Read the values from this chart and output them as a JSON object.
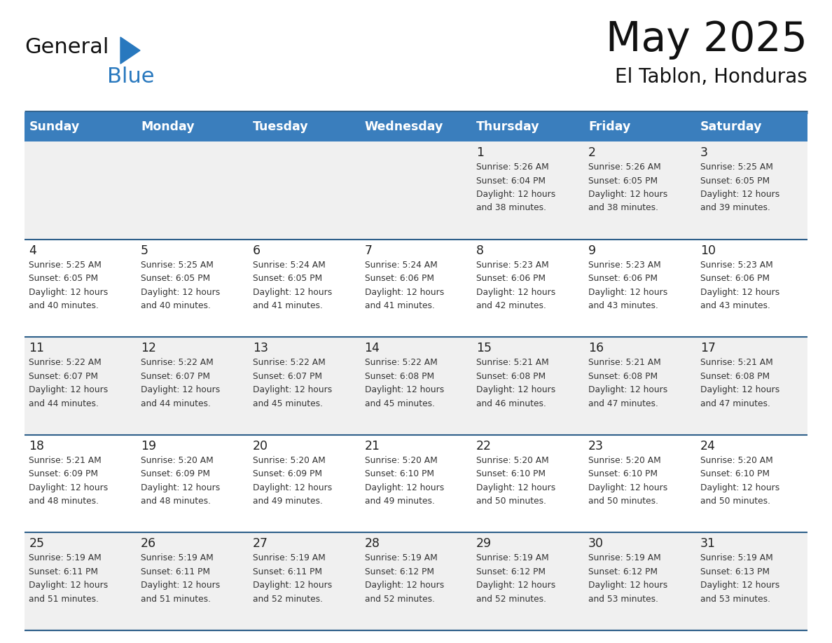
{
  "title": "May 2025",
  "subtitle": "El Tablon, Honduras",
  "days_of_week": [
    "Sunday",
    "Monday",
    "Tuesday",
    "Wednesday",
    "Thursday",
    "Friday",
    "Saturday"
  ],
  "header_bg": "#3A7EBD",
  "header_text": "#FFFFFF",
  "row_bg_light": "#F0F0F0",
  "row_bg_white": "#FFFFFF",
  "separator_color": "#2E5F8A",
  "day_number_color": "#222222",
  "cell_text_color": "#333333",
  "title_color": "#111111",
  "subtitle_color": "#111111",
  "logo_general_color": "#111111",
  "logo_blue_color": "#2878BE",
  "calendar_data": [
    [
      {
        "day": "",
        "sunrise": "",
        "sunset": "",
        "daylight": ""
      },
      {
        "day": "",
        "sunrise": "",
        "sunset": "",
        "daylight": ""
      },
      {
        "day": "",
        "sunrise": "",
        "sunset": "",
        "daylight": ""
      },
      {
        "day": "",
        "sunrise": "",
        "sunset": "",
        "daylight": ""
      },
      {
        "day": "1",
        "sunrise": "5:26 AM",
        "sunset": "6:04 PM",
        "daylight": "38 minutes."
      },
      {
        "day": "2",
        "sunrise": "5:26 AM",
        "sunset": "6:05 PM",
        "daylight": "38 minutes."
      },
      {
        "day": "3",
        "sunrise": "5:25 AM",
        "sunset": "6:05 PM",
        "daylight": "39 minutes."
      }
    ],
    [
      {
        "day": "4",
        "sunrise": "5:25 AM",
        "sunset": "6:05 PM",
        "daylight": "40 minutes."
      },
      {
        "day": "5",
        "sunrise": "5:25 AM",
        "sunset": "6:05 PM",
        "daylight": "40 minutes."
      },
      {
        "day": "6",
        "sunrise": "5:24 AM",
        "sunset": "6:05 PM",
        "daylight": "41 minutes."
      },
      {
        "day": "7",
        "sunrise": "5:24 AM",
        "sunset": "6:06 PM",
        "daylight": "41 minutes."
      },
      {
        "day": "8",
        "sunrise": "5:23 AM",
        "sunset": "6:06 PM",
        "daylight": "42 minutes."
      },
      {
        "day": "9",
        "sunrise": "5:23 AM",
        "sunset": "6:06 PM",
        "daylight": "43 minutes."
      },
      {
        "day": "10",
        "sunrise": "5:23 AM",
        "sunset": "6:06 PM",
        "daylight": "43 minutes."
      }
    ],
    [
      {
        "day": "11",
        "sunrise": "5:22 AM",
        "sunset": "6:07 PM",
        "daylight": "44 minutes."
      },
      {
        "day": "12",
        "sunrise": "5:22 AM",
        "sunset": "6:07 PM",
        "daylight": "44 minutes."
      },
      {
        "day": "13",
        "sunrise": "5:22 AM",
        "sunset": "6:07 PM",
        "daylight": "45 minutes."
      },
      {
        "day": "14",
        "sunrise": "5:22 AM",
        "sunset": "6:08 PM",
        "daylight": "45 minutes."
      },
      {
        "day": "15",
        "sunrise": "5:21 AM",
        "sunset": "6:08 PM",
        "daylight": "46 minutes."
      },
      {
        "day": "16",
        "sunrise": "5:21 AM",
        "sunset": "6:08 PM",
        "daylight": "47 minutes."
      },
      {
        "day": "17",
        "sunrise": "5:21 AM",
        "sunset": "6:08 PM",
        "daylight": "47 minutes."
      }
    ],
    [
      {
        "day": "18",
        "sunrise": "5:21 AM",
        "sunset": "6:09 PM",
        "daylight": "48 minutes."
      },
      {
        "day": "19",
        "sunrise": "5:20 AM",
        "sunset": "6:09 PM",
        "daylight": "48 minutes."
      },
      {
        "day": "20",
        "sunrise": "5:20 AM",
        "sunset": "6:09 PM",
        "daylight": "49 minutes."
      },
      {
        "day": "21",
        "sunrise": "5:20 AM",
        "sunset": "6:10 PM",
        "daylight": "49 minutes."
      },
      {
        "day": "22",
        "sunrise": "5:20 AM",
        "sunset": "6:10 PM",
        "daylight": "50 minutes."
      },
      {
        "day": "23",
        "sunrise": "5:20 AM",
        "sunset": "6:10 PM",
        "daylight": "50 minutes."
      },
      {
        "day": "24",
        "sunrise": "5:20 AM",
        "sunset": "6:10 PM",
        "daylight": "50 minutes."
      }
    ],
    [
      {
        "day": "25",
        "sunrise": "5:19 AM",
        "sunset": "6:11 PM",
        "daylight": "51 minutes."
      },
      {
        "day": "26",
        "sunrise": "5:19 AM",
        "sunset": "6:11 PM",
        "daylight": "51 minutes."
      },
      {
        "day": "27",
        "sunrise": "5:19 AM",
        "sunset": "6:11 PM",
        "daylight": "52 minutes."
      },
      {
        "day": "28",
        "sunrise": "5:19 AM",
        "sunset": "6:12 PM",
        "daylight": "52 minutes."
      },
      {
        "day": "29",
        "sunrise": "5:19 AM",
        "sunset": "6:12 PM",
        "daylight": "52 minutes."
      },
      {
        "day": "30",
        "sunrise": "5:19 AM",
        "sunset": "6:12 PM",
        "daylight": "53 minutes."
      },
      {
        "day": "31",
        "sunrise": "5:19 AM",
        "sunset": "6:13 PM",
        "daylight": "53 minutes."
      }
    ]
  ]
}
